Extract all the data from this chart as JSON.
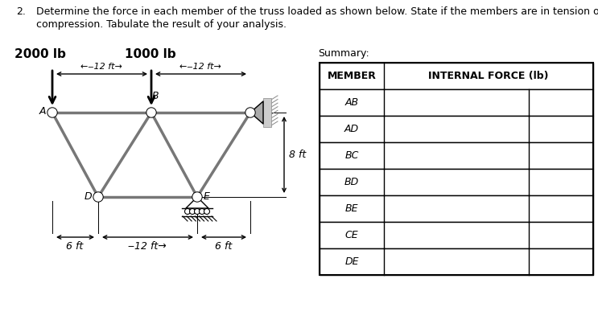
{
  "problem_number": "2.",
  "title_line1": "Determine the force in each member of the truss loaded as shown below. State if the members are in tension or",
  "title_line2": "compression. Tabulate the result of your analysis.",
  "load1_label": "2000 lb",
  "load2_label": "1000 lb",
  "summary_label": "Summary:",
  "dim_12ft_top1": "‒12 ft→",
  "dim_12ft_top2": "‒12 ft→",
  "dim_8ft": "8 ft",
  "dim_12ft_bot": "‒12 ft→",
  "dim_6ft_left": "6 ft",
  "dim_6ft_right": "6 ft",
  "table_header_col1": "MEMBER",
  "table_header_col2": "INTERNAL FORCE (lb)",
  "table_rows": [
    "AB",
    "AD",
    "BC",
    "BD",
    "BE",
    "CE",
    "DE"
  ],
  "bg_color": "#ffffff",
  "truss_color": "#777777",
  "node_color": "#ffffff",
  "node_edge_color": "#000000"
}
